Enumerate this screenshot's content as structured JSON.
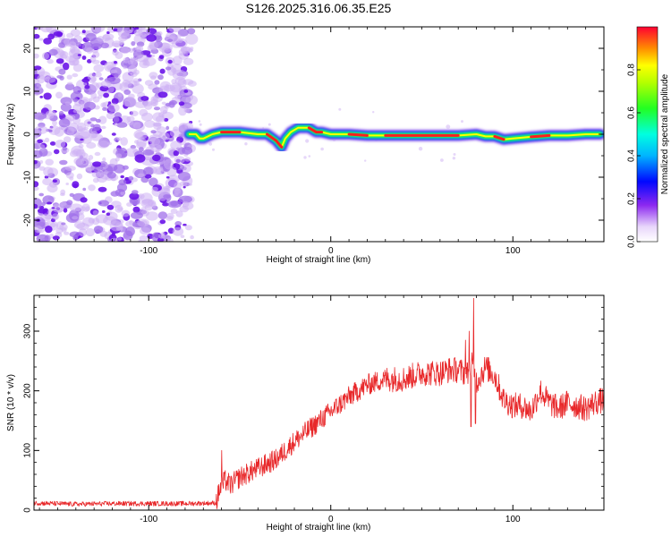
{
  "title": "S126.2025.316.06.35.E25",
  "colors": {
    "line": "#e8282a",
    "speckle_light": "#cdb0f4",
    "speckle_mid": "#a070ea",
    "speckle_dark": "#6a14e8"
  },
  "chart_data": [
    {
      "type": "heatmap",
      "title": "S126.2025.316.06.35.E25",
      "xlabel": "Height of straight line (km)",
      "ylabel": "Frequency (Hz)",
      "xlim": [
        -163,
        150
      ],
      "ylim": [
        -25,
        25
      ],
      "xticks": [
        -100,
        0,
        100
      ],
      "yticks": [
        -20,
        -10,
        0,
        10,
        20
      ],
      "colorbar": {
        "label": "Normalized spectral amplitude",
        "range": [
          0,
          1
        ],
        "ticks": [
          "0.0",
          "0.2",
          "0.4",
          "0.6",
          "0.8"
        ],
        "tick_values": [
          0,
          0.2,
          0.4,
          0.6,
          0.8
        ]
      },
      "noise_region_x": [
        -163,
        -78
      ],
      "ridge": {
        "x": [
          -78,
          -74,
          -72,
          -70,
          -65,
          -60,
          -50,
          -40,
          -35,
          -30,
          -27,
          -25,
          -22,
          -18,
          -12,
          -8,
          -5,
          0,
          10,
          20,
          30,
          40,
          50,
          60,
          70,
          80,
          85,
          90,
          95,
          100,
          110,
          120,
          130,
          140,
          148
        ],
        "freq": [
          0,
          0,
          -1,
          -1,
          0,
          0.5,
          0.5,
          0,
          0,
          -1.5,
          -3,
          -1,
          0.5,
          1.5,
          1.5,
          0.5,
          0.5,
          0,
          0,
          -0.3,
          -0.3,
          -0.3,
          -0.3,
          -0.3,
          -0.3,
          0,
          -0.5,
          -0.5,
          -1.2,
          -1,
          -0.6,
          -0.3,
          -0.3,
          0,
          0
        ]
      }
    },
    {
      "type": "line",
      "xlabel": "Height of straight line (km)",
      "ylabel": "SNR (10 * v/v)",
      "xlim": [
        -163,
        150
      ],
      "ylim": [
        0,
        360
      ],
      "xticks": [
        -100,
        0,
        100
      ],
      "yticks": [
        0,
        100,
        200,
        300
      ],
      "series": [
        {
          "name": "SNR",
          "x": [
            -163,
            -140,
            -120,
            -100,
            -80,
            -63,
            -61,
            -58,
            -55,
            -50,
            -40,
            -30,
            -20,
            -10,
            0,
            10,
            20,
            30,
            40,
            50,
            60,
            65,
            70,
            75,
            78,
            80,
            85,
            90,
            95,
            100,
            105,
            110,
            115,
            120,
            125,
            130,
            135,
            140,
            145,
            150
          ],
          "y": [
            12,
            10,
            11,
            11,
            11,
            12,
            35,
            50,
            42,
            55,
            70,
            85,
            115,
            140,
            165,
            190,
            210,
            220,
            220,
            230,
            230,
            235,
            235,
            228,
            245,
            215,
            240,
            225,
            185,
            175,
            175,
            165,
            200,
            180,
            170,
            180,
            175,
            170,
            180,
            185
          ]
        }
      ],
      "spikes": [
        {
          "x": 74,
          "y": 285
        },
        {
          "x": 76,
          "y": 300
        },
        {
          "x": 78.5,
          "y": 355
        },
        {
          "x": 77,
          "y": 140
        },
        {
          "x": 79.5,
          "y": 145
        },
        {
          "x": -60,
          "y": 100
        }
      ]
    }
  ]
}
